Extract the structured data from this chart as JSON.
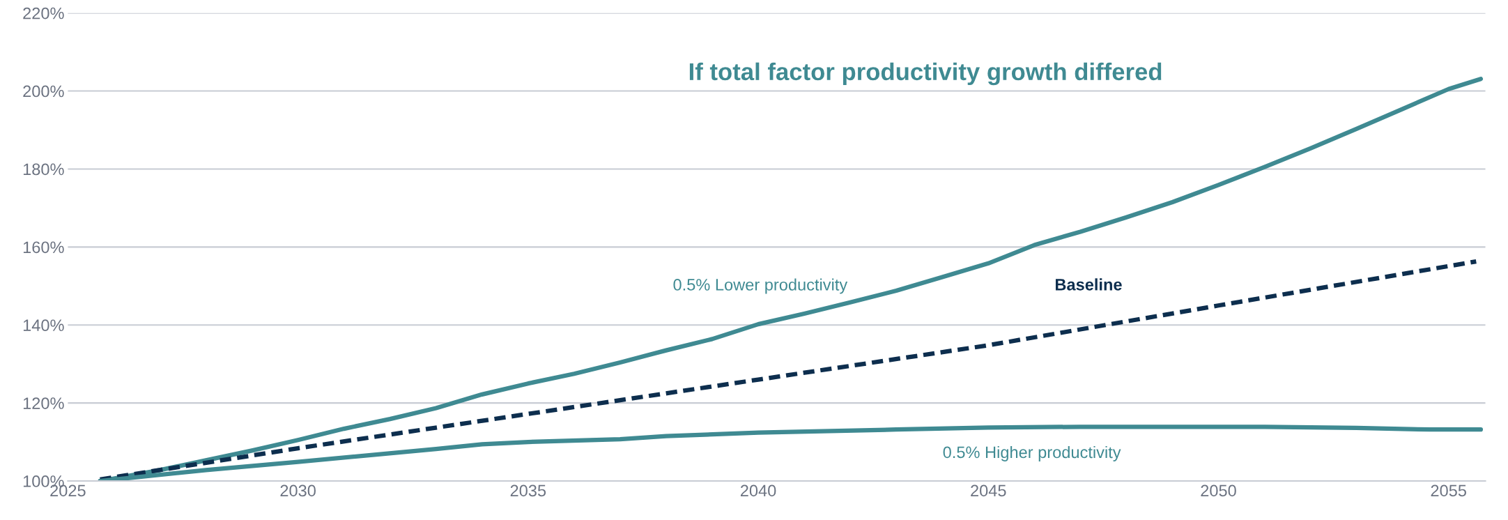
{
  "chart_data": {
    "type": "line",
    "title": "If total factor productivity growth differed",
    "xlim": [
      2025,
      2055.8
    ],
    "xticks": [
      2025,
      2030,
      2035,
      2040,
      2045,
      2050,
      2055
    ],
    "ylim": [
      100,
      220
    ],
    "yticks": [
      {
        "value": 100,
        "label": "100%"
      },
      {
        "value": 120,
        "label": "120%"
      },
      {
        "value": 140,
        "label": "140%"
      },
      {
        "value": 160,
        "label": "160%"
      },
      {
        "value": 180,
        "label": "180%"
      },
      {
        "value": 200,
        "label": "200%"
      },
      {
        "value": 220,
        "label": "220%"
      }
    ],
    "grid": "y",
    "legend": false,
    "marker": "none",
    "series": [
      {
        "name": "0.5% Lower productivity",
        "color": "#3f8a92",
        "line_style": "solid",
        "x": [
          2025.7,
          2026,
          2027,
          2028,
          2029,
          2030,
          2031,
          2032,
          2033,
          2034,
          2035,
          2036,
          2037,
          2038,
          2039,
          2040,
          2041,
          2042,
          2043,
          2044,
          2045,
          2046,
          2047,
          2048,
          2049,
          2050,
          2051,
          2052,
          2053,
          2054,
          2055,
          2055.7
        ],
        "values": [
          100,
          100.6,
          102.8,
          105.3,
          107.8,
          110.5,
          113.4,
          115.9,
          118.7,
          122.2,
          125,
          127.5,
          130.4,
          133.5,
          136.4,
          140.2,
          142.9,
          145.8,
          148.8,
          152.3,
          155.8,
          160.5,
          163.9,
          167.6,
          171.5,
          175.9,
          180.5,
          185.3,
          190.3,
          195.4,
          200.5,
          203.1
        ]
      },
      {
        "name": "Baseline",
        "color": "#0d2e4e",
        "line_style": "dashed",
        "x": [
          2025.7,
          2030,
          2035,
          2040,
          2045,
          2050,
          2055,
          2055.6
        ],
        "values": [
          100.4,
          108.4,
          117.2,
          126,
          134.8,
          145,
          155.1,
          156.3
        ]
      },
      {
        "name": "0.5% Higher productivity",
        "color": "#3f8a92",
        "line_style": "solid",
        "x": [
          2025.7,
          2028,
          2030,
          2033,
          2034,
          2035,
          2037,
          2038,
          2040,
          2043,
          2045,
          2047,
          2051,
          2053,
          2054.6,
          2055.7
        ],
        "values": [
          100,
          102.8,
          104.9,
          108.2,
          109.4,
          110,
          110.7,
          111.5,
          112.4,
          113.2,
          113.7,
          113.9,
          113.9,
          113.6,
          113.2,
          113.2
        ]
      }
    ]
  }
}
